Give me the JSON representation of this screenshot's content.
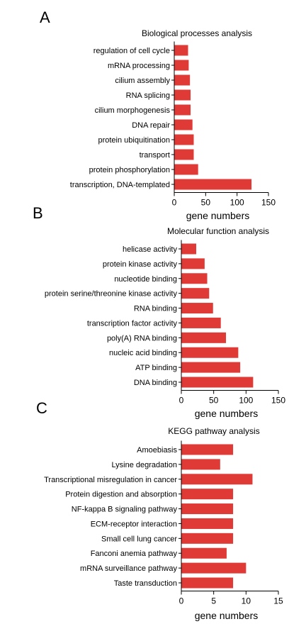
{
  "chart_data": [
    {
      "type": "bar",
      "orientation": "horizontal",
      "panel_label": "A",
      "title": "Biological processes analysis",
      "xlabel": "gene numbers",
      "categories": [
        "regulation of cell cycle",
        "mRNA processing",
        "cilium assembly",
        "RNA splicing",
        "cilium morphogenesis",
        "DNA repair",
        "protein ubiquitination",
        "transport",
        "protein phosphorylation",
        "transcription, DNA-templated"
      ],
      "values": [
        22,
        23,
        25,
        26,
        26,
        29,
        31,
        31,
        38,
        123
      ],
      "xlim": [
        0,
        150
      ],
      "xticks": [
        "0",
        "50",
        "100",
        "150"
      ],
      "bar_color": "#e03a36"
    },
    {
      "type": "bar",
      "orientation": "horizontal",
      "panel_label": "B",
      "title": "Molecular function analysis",
      "xlabel": "gene numbers",
      "categories": [
        "helicase activity",
        "protein kinase activity",
        "nucleotide binding",
        "protein serine/threonine kinase activity",
        "RNA binding",
        "transcription factor activity",
        "poly(A) RNA binding",
        "nucleic acid binding",
        "ATP binding",
        "DNA binding"
      ],
      "values": [
        23,
        36,
        40,
        43,
        49,
        61,
        69,
        88,
        91,
        111
      ],
      "xlim": [
        0,
        150
      ],
      "xticks": [
        "0",
        "50",
        "100",
        "150"
      ],
      "bar_color": "#e03a36"
    },
    {
      "type": "bar",
      "orientation": "horizontal",
      "panel_label": "C",
      "title": "KEGG pathway analysis",
      "xlabel": "gene numbers",
      "categories": [
        "Amoebiasis",
        "Lysine degradation",
        "Transcriptional misregulation in cancer",
        "Protein digestion and absorption",
        "NF-kappa B signaling pathway",
        "ECM-receptor interaction",
        "Small cell lung cancer",
        "Fanconi anemia pathway",
        "mRNA surveillance pathway",
        "Taste transduction"
      ],
      "values": [
        8,
        6,
        11,
        8,
        8,
        8,
        8,
        7,
        10,
        8
      ],
      "xlim": [
        0,
        15
      ],
      "xticks": [
        "0",
        "5",
        "10",
        "15"
      ],
      "bar_color": "#e03a36"
    }
  ]
}
